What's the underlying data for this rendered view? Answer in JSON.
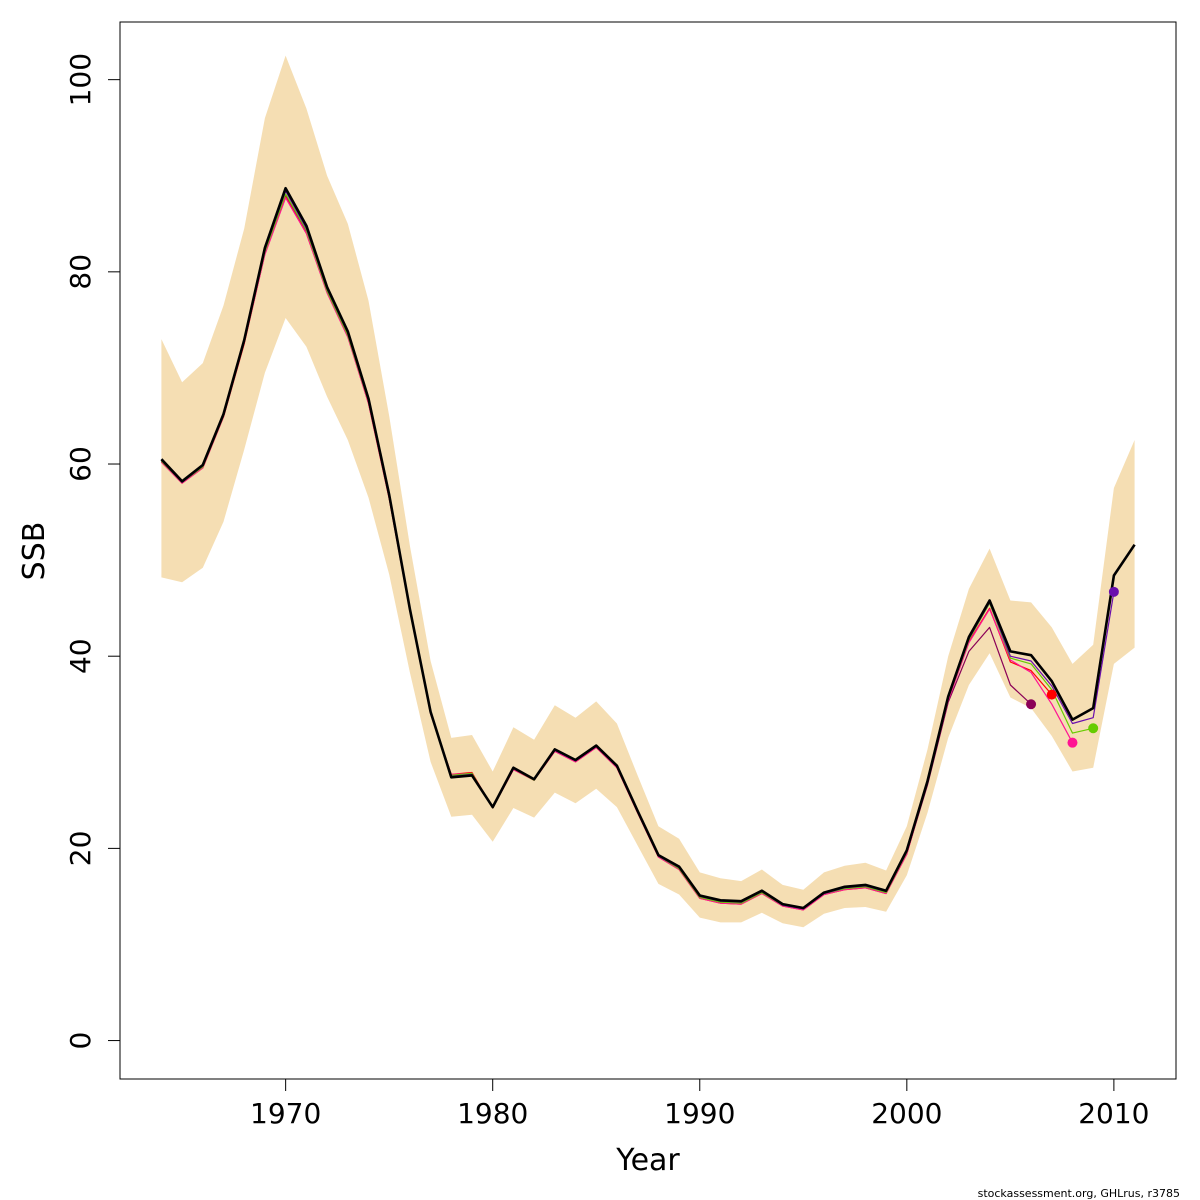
{
  "chart_data": {
    "type": "line",
    "xlabel": "Year",
    "ylabel": "SSB",
    "xlim": [
      1962,
      2013
    ],
    "ylim": [
      -4,
      106
    ],
    "x_ticks": [
      1970,
      1980,
      1990,
      2000,
      2010
    ],
    "y_ticks": [
      0,
      20,
      40,
      60,
      80,
      100
    ],
    "grid": false,
    "legend": "none",
    "band": {
      "color": "#f5deb3",
      "x": [
        1964,
        1965,
        1966,
        1967,
        1968,
        1969,
        1970,
        1971,
        1972,
        1973,
        1974,
        1975,
        1976,
        1977,
        1978,
        1979,
        1980,
        1981,
        1982,
        1983,
        1984,
        1985,
        1986,
        1987,
        1988,
        1989,
        1990,
        1991,
        1992,
        1993,
        1994,
        1995,
        1996,
        1997,
        1998,
        1999,
        2000,
        2001,
        2002,
        2003,
        2004,
        2005,
        2006,
        2007,
        2008,
        2009,
        2010,
        2011
      ],
      "upper": [
        73,
        68.5,
        70.5,
        76.5,
        84.5,
        96,
        102.5,
        97,
        90,
        85,
        77,
        65,
        51.5,
        39.5,
        31.5,
        31.8,
        28,
        32.6,
        31.3,
        34.9,
        33.6,
        35.3,
        33,
        27.6,
        22.3,
        21,
        17.5,
        16.9,
        16.6,
        17.8,
        16.2,
        15.7,
        17.5,
        18.2,
        18.5,
        17.7,
        22.3,
        30.3,
        40,
        47,
        51.2,
        45.8,
        45.6,
        43,
        39.2,
        41.2,
        57.5,
        62.5
      ],
      "lower": [
        48.2,
        47.7,
        49.2,
        54,
        61.5,
        69.5,
        75.2,
        72.2,
        67,
        62.5,
        56.5,
        48.5,
        38.3,
        29,
        23.3,
        23.5,
        20.7,
        24.2,
        23.2,
        25.8,
        24.7,
        26.2,
        24.3,
        20.3,
        16.3,
        15.2,
        12.8,
        12.3,
        12.3,
        13.3,
        12.2,
        11.8,
        13.2,
        13.8,
        13.9,
        13.4,
        17.2,
        23.7,
        31.5,
        37,
        40.3,
        35.7,
        34.6,
        31.7,
        28,
        28.4,
        39.2,
        40.9
      ]
    },
    "series": [
      {
        "color": "#000000",
        "x": [
          1964,
          1965,
          1966,
          1967,
          1968,
          1969,
          1970,
          1971,
          1972,
          1973,
          1974,
          1975,
          1976,
          1977,
          1978,
          1979,
          1980,
          1981,
          1982,
          1983,
          1984,
          1985,
          1986,
          1987,
          1988,
          1989,
          1990,
          1991,
          1992,
          1993,
          1994,
          1995,
          1996,
          1997,
          1998,
          1999,
          2000,
          2001,
          2002,
          2003,
          2004,
          2005,
          2006,
          2007,
          2008,
          2009,
          2010,
          2011
        ],
        "values": [
          60.5,
          58.2,
          59.9,
          65.2,
          72.9,
          82.5,
          88.7,
          84.8,
          78.4,
          73.8,
          66.8,
          56.8,
          44.9,
          34.2,
          27.4,
          27.6,
          24.3,
          28.4,
          27.2,
          30.3,
          29.2,
          30.7,
          28.6,
          23.9,
          19.3,
          18.1,
          15.1,
          14.6,
          14.5,
          15.6,
          14.2,
          13.8,
          15.4,
          16.0,
          16.2,
          15.6,
          19.8,
          27.0,
          35.8,
          42.0,
          45.8,
          40.5,
          40.1,
          37.4,
          33.4,
          34.6,
          48.4,
          51.6
        ]
      },
      {
        "color": "#8b0057",
        "x": [
          1964,
          1965,
          1966,
          1967,
          1968,
          1969,
          1970,
          1971,
          1972,
          1973,
          1974,
          1975,
          1976,
          1977,
          1978,
          1979,
          1980,
          1981,
          1982,
          1983,
          1984,
          1985,
          1986,
          1987,
          1988,
          1989,
          1990,
          1991,
          1992,
          1993,
          1994,
          1995,
          1996,
          1997,
          1998,
          1999,
          2000,
          2001,
          2002,
          2003,
          2004,
          2005,
          2006
        ],
        "values": [
          60.3,
          58.1,
          59.7,
          65.0,
          72.6,
          82.0,
          88.0,
          84.2,
          78.0,
          73.4,
          66.4,
          56.5,
          44.8,
          34.1,
          27.6,
          27.8,
          24.3,
          28.3,
          27.2,
          30.2,
          29.1,
          30.6,
          28.5,
          23.8,
          19.2,
          17.9,
          14.9,
          14.4,
          14.3,
          15.4,
          14.1,
          13.7,
          15.3,
          15.8,
          16.0,
          15.4,
          19.5,
          26.6,
          35.2,
          40.5,
          43.0,
          37.0,
          35.0
        ]
      },
      {
        "color": "#ff0000",
        "x": [
          1964,
          1965,
          1966,
          1967,
          1968,
          1969,
          1970,
          1971,
          1972,
          1973,
          1974,
          1975,
          1976,
          1977,
          1978,
          1979,
          1980,
          1981,
          1982,
          1983,
          1984,
          1985,
          1986,
          1987,
          1988,
          1989,
          1990,
          1991,
          1992,
          1993,
          1994,
          1995,
          1996,
          1997,
          1998,
          1999,
          2000,
          2001,
          2002,
          2003,
          2004,
          2005,
          2006,
          2007
        ],
        "values": [
          60.2,
          58.0,
          59.6,
          64.9,
          72.5,
          81.9,
          87.8,
          84.0,
          77.9,
          73.3,
          66.3,
          56.4,
          44.7,
          34.0,
          27.7,
          27.9,
          24.2,
          28.2,
          27.1,
          30.1,
          29.0,
          30.5,
          28.4,
          23.7,
          19.1,
          17.8,
          14.8,
          14.3,
          14.2,
          15.3,
          14.0,
          13.6,
          15.2,
          15.7,
          15.9,
          15.3,
          19.4,
          26.9,
          35.5,
          41.5,
          45.0,
          39.4,
          38.5,
          36.0
        ]
      },
      {
        "color": "#ff1493",
        "x": [
          1964,
          1965,
          1966,
          1967,
          1968,
          1969,
          1970,
          1971,
          1972,
          1973,
          1974,
          1975,
          1976,
          1977,
          1978,
          1979,
          1980,
          1981,
          1982,
          1983,
          1984,
          1985,
          1986,
          1987,
          1988,
          1989,
          1990,
          1991,
          1992,
          1993,
          1994,
          1995,
          1996,
          1997,
          1998,
          1999,
          2000,
          2001,
          2002,
          2003,
          2004,
          2005,
          2006,
          2007,
          2008
        ],
        "values": [
          60.2,
          58.0,
          59.6,
          64.9,
          72.6,
          81.8,
          87.7,
          84.0,
          77.8,
          73.2,
          66.3,
          56.4,
          44.7,
          34.0,
          27.7,
          27.8,
          24.2,
          28.2,
          27.1,
          30.1,
          29.0,
          30.5,
          28.4,
          23.7,
          19.1,
          17.8,
          14.8,
          14.3,
          14.2,
          15.3,
          14.0,
          13.6,
          15.2,
          15.7,
          15.9,
          15.3,
          19.4,
          26.9,
          35.4,
          41.4,
          44.9,
          39.6,
          38.3,
          35.0,
          31.0
        ]
      },
      {
        "color": "#66cc00",
        "x": [
          1964,
          1965,
          1966,
          1967,
          1968,
          1969,
          1970,
          1971,
          1972,
          1973,
          1974,
          1975,
          1976,
          1977,
          1978,
          1979,
          1980,
          1981,
          1982,
          1983,
          1984,
          1985,
          1986,
          1987,
          1988,
          1989,
          1990,
          1991,
          1992,
          1993,
          1994,
          1995,
          1996,
          1997,
          1998,
          1999,
          2000,
          2001,
          2002,
          2003,
          2004,
          2005,
          2006,
          2007,
          2008,
          2009
        ],
        "values": [
          60.3,
          58.1,
          59.7,
          65.0,
          72.7,
          82.1,
          88.1,
          84.3,
          78.0,
          73.4,
          66.5,
          56.5,
          44.8,
          34.1,
          27.6,
          27.8,
          24.2,
          28.3,
          27.1,
          30.2,
          29.1,
          30.6,
          28.5,
          23.8,
          19.2,
          17.9,
          14.9,
          14.4,
          14.3,
          15.4,
          14.1,
          13.7,
          15.3,
          15.8,
          16.0,
          15.4,
          19.6,
          27.0,
          35.6,
          41.7,
          45.5,
          39.8,
          39.2,
          36.5,
          32.0,
          32.5
        ]
      },
      {
        "color": "#6a0dad",
        "x": [
          1964,
          1965,
          1966,
          1967,
          1968,
          1969,
          1970,
          1971,
          1972,
          1973,
          1974,
          1975,
          1976,
          1977,
          1978,
          1979,
          1980,
          1981,
          1982,
          1983,
          1984,
          1985,
          1986,
          1987,
          1988,
          1989,
          1990,
          1991,
          1992,
          1993,
          1994,
          1995,
          1996,
          1997,
          1998,
          1999,
          2000,
          2001,
          2002,
          2003,
          2004,
          2005,
          2006,
          2007,
          2008,
          2009,
          2010
        ],
        "values": [
          60.4,
          58.1,
          59.8,
          65.1,
          72.8,
          82.3,
          88.4,
          84.5,
          78.2,
          73.6,
          66.6,
          56.6,
          44.8,
          34.1,
          27.5,
          27.7,
          24.3,
          28.3,
          27.2,
          30.2,
          29.1,
          30.6,
          28.5,
          23.8,
          19.2,
          18.0,
          15.0,
          14.5,
          14.4,
          15.5,
          14.1,
          13.7,
          15.3,
          15.9,
          16.1,
          15.5,
          19.7,
          26.9,
          35.7,
          41.8,
          45.6,
          40.0,
          39.5,
          36.9,
          33.0,
          33.6,
          46.7
        ]
      }
    ],
    "terminal_points": [
      {
        "x": 2006,
        "y": 35.0,
        "color": "#8b0057"
      },
      {
        "x": 2007,
        "y": 36.0,
        "color": "#ff0000"
      },
      {
        "x": 2008,
        "y": 31.0,
        "color": "#ff1493"
      },
      {
        "x": 2009,
        "y": 32.5,
        "color": "#66cc00"
      },
      {
        "x": 2010,
        "y": 46.7,
        "color": "#6a0dad"
      }
    ]
  },
  "credit": "stockassessment.org, GHLrus, r3785"
}
